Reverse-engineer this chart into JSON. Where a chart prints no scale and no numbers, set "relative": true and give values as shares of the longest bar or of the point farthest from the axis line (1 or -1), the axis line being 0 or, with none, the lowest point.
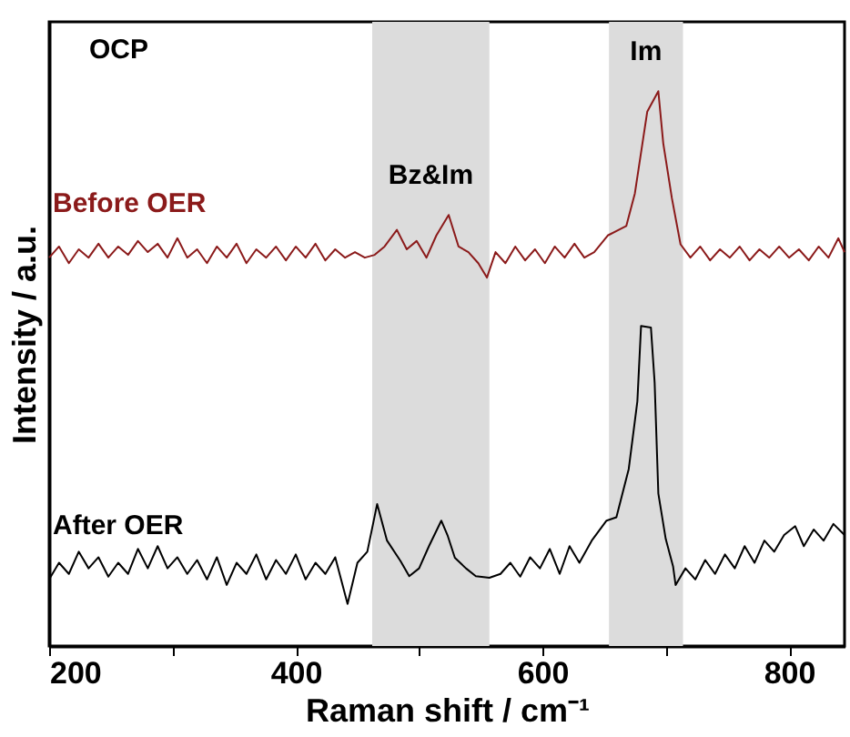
{
  "chart_data": {
    "type": "line",
    "relative": true,
    "xlabel": "Raman shift / cm⁻¹",
    "ylabel": "Intensity / a.u.",
    "xlim": [
      200,
      845
    ],
    "xticks": [
      200,
      {
        "value": 300,
        "label": null
      },
      400,
      {
        "value": 500,
        "label": null
      },
      600,
      {
        "value": 700,
        "label": null
      },
      800
    ],
    "tick_labels": "x",
    "line_style": "solid",
    "marker": "none",
    "bands": [
      {
        "axis": "x",
        "from": 462,
        "to": 557,
        "color": "#dcdcdc",
        "label": "Bz&Im"
      },
      {
        "axis": "x",
        "from": 654,
        "to": 714,
        "color": "#dcdcdc",
        "label": "Im"
      }
    ],
    "annotations": [
      "OCP"
    ],
    "series": [
      {
        "name": "Before OER",
        "color": "#8b1a1a",
        "x": [
          200,
          208,
          216,
          224,
          232,
          240,
          248,
          256,
          264,
          272,
          280,
          288,
          296,
          304,
          312,
          320,
          328,
          336,
          344,
          352,
          360,
          368,
          376,
          384,
          392,
          400,
          408,
          416,
          424,
          432,
          440,
          448,
          456,
          464,
          472,
          482,
          490,
          498,
          506,
          514,
          524,
          532,
          540,
          548,
          555,
          562,
          570,
          578,
          586,
          594,
          602,
          610,
          618,
          626,
          634,
          642,
          653,
          668,
          675,
          685,
          694,
          698,
          705,
          712,
          720,
          728,
          736,
          744,
          752,
          760,
          768,
          776,
          784,
          792,
          800,
          808,
          816,
          824,
          832,
          840,
          845
        ],
        "values": [
          0.7,
          0.72,
          0.69,
          0.715,
          0.7,
          0.725,
          0.7,
          0.72,
          0.705,
          0.73,
          0.71,
          0.725,
          0.7,
          0.735,
          0.7,
          0.715,
          0.69,
          0.72,
          0.7,
          0.725,
          0.69,
          0.715,
          0.7,
          0.72,
          0.695,
          0.72,
          0.7,
          0.725,
          0.695,
          0.715,
          0.7,
          0.71,
          0.7,
          0.705,
          0.72,
          0.75,
          0.715,
          0.73,
          0.7,
          0.74,
          0.777,
          0.72,
          0.71,
          0.69,
          0.664,
          0.71,
          0.69,
          0.72,
          0.695,
          0.715,
          0.69,
          0.72,
          0.7,
          0.725,
          0.7,
          0.71,
          0.74,
          0.757,
          0.816,
          0.963,
          1.0,
          0.906,
          0.807,
          0.724,
          0.7,
          0.72,
          0.695,
          0.715,
          0.7,
          0.72,
          0.695,
          0.715,
          0.7,
          0.72,
          0.7,
          0.715,
          0.695,
          0.72,
          0.7,
          0.735,
          0.71
        ]
      },
      {
        "name": "After OER",
        "color": "#000000",
        "x": [
          200,
          208,
          216,
          224,
          232,
          240,
          248,
          256,
          264,
          272,
          280,
          288,
          296,
          304,
          312,
          320,
          328,
          336,
          344,
          352,
          360,
          368,
          376,
          384,
          392,
          400,
          408,
          416,
          424,
          432,
          442,
          450,
          458,
          466,
          474,
          485,
          492,
          500,
          508,
          518,
          523,
          529,
          538,
          546,
          557,
          566,
          574,
          582,
          590,
          598,
          606,
          614,
          622,
          630,
          640,
          652,
          660,
          670,
          677,
          680,
          688,
          691,
          694,
          700,
          706,
          708,
          716,
          724,
          732,
          740,
          748,
          756,
          764,
          772,
          780,
          788,
          796,
          805,
          812,
          820,
          828,
          836,
          845
        ],
        "values": [
          0.12,
          0.15,
          0.13,
          0.17,
          0.14,
          0.16,
          0.125,
          0.15,
          0.13,
          0.175,
          0.14,
          0.18,
          0.14,
          0.16,
          0.13,
          0.155,
          0.12,
          0.16,
          0.11,
          0.15,
          0.13,
          0.165,
          0.12,
          0.155,
          0.13,
          0.165,
          0.12,
          0.15,
          0.13,
          0.16,
          0.076,
          0.15,
          0.17,
          0.256,
          0.19,
          0.153,
          0.126,
          0.14,
          0.18,
          0.226,
          0.2,
          0.159,
          0.14,
          0.126,
          0.123,
          0.13,
          0.15,
          0.125,
          0.16,
          0.14,
          0.175,
          0.13,
          0.18,
          0.15,
          0.19,
          0.226,
          0.232,
          0.319,
          0.441,
          0.577,
          0.574,
          0.475,
          0.275,
          0.193,
          0.143,
          0.11,
          0.14,
          0.12,
          0.155,
          0.13,
          0.165,
          0.14,
          0.18,
          0.15,
          0.19,
          0.17,
          0.2,
          0.216,
          0.18,
          0.21,
          0.19,
          0.22,
          0.2
        ]
      }
    ]
  }
}
